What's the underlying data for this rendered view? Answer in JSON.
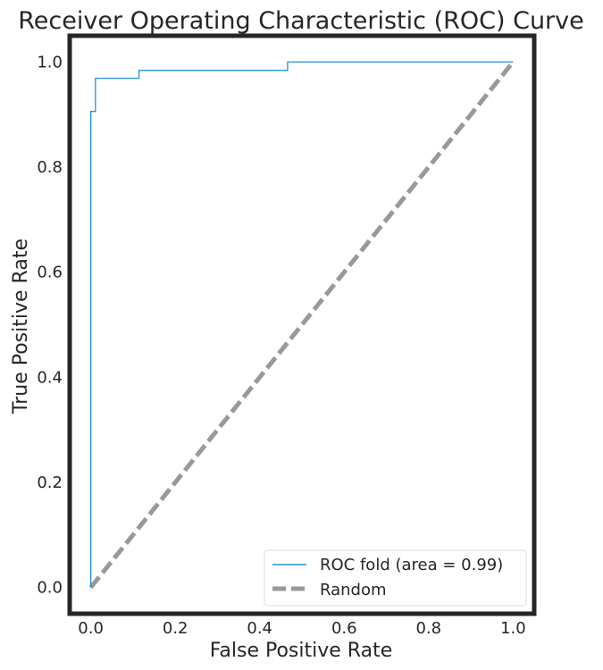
{
  "chart_data": {
    "type": "line",
    "title": "Receiver Operating Characteristic (ROC) Curve",
    "xlabel": "False Positive Rate",
    "ylabel": "True Positive Rate",
    "xlim": [
      -0.05,
      1.05
    ],
    "ylim": [
      -0.05,
      1.05
    ],
    "xticks": [
      "0.0",
      "0.2",
      "0.4",
      "0.6",
      "0.8",
      "1.0"
    ],
    "yticks": [
      "0.0",
      "0.2",
      "0.4",
      "0.6",
      "0.8",
      "1.0"
    ],
    "grid": false,
    "legend_position": "lower-right",
    "series": [
      {
        "name": "ROC fold (area = 0.99)",
        "color": "#1f8fcf",
        "style": "solid",
        "x": [
          0.0,
          0.0,
          0.0,
          0.0,
          0.011,
          0.011,
          0.114,
          0.114,
          0.466,
          0.466,
          1.0
        ],
        "y": [
          0.0,
          0.906,
          0.906,
          0.906,
          0.906,
          0.969,
          0.969,
          0.984,
          0.984,
          1.0,
          1.0
        ]
      },
      {
        "name": "Random",
        "color": "#999999",
        "style": "dashed",
        "x": [
          0.0,
          1.0
        ],
        "y": [
          0.0,
          1.0
        ]
      }
    ]
  }
}
